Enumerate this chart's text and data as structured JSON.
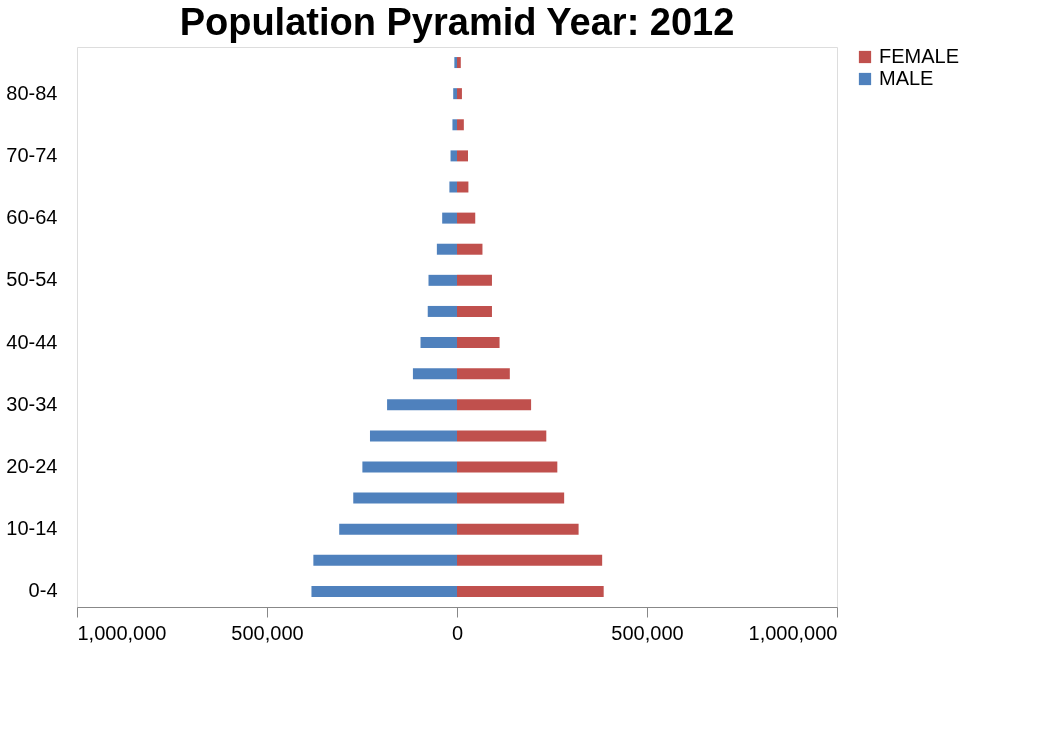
{
  "chart_data": {
    "type": "bar",
    "orientation": "horizontal",
    "title": "Population Pyramid Year: 2012",
    "categories": [
      null,
      "80-84",
      null,
      "70-74",
      null,
      "60-64",
      null,
      "50-54",
      null,
      "40-44",
      null,
      "30-34",
      null,
      "20-24",
      null,
      "10-14",
      null,
      "0-4"
    ],
    "series": [
      {
        "name": "FEMALE",
        "color": "#c0504d",
        "values": [
          10000,
          13000,
          18000,
          29000,
          30000,
          48000,
          67000,
          92000,
          92000,
          112000,
          139000,
          195000,
          235000,
          264000,
          282000,
          320000,
          382000,
          386000
        ]
      },
      {
        "name": "MALE",
        "color": "#4f81bd",
        "values": [
          -7000,
          -10000,
          -12000,
          -17000,
          -20000,
          -39000,
          -53000,
          -75000,
          -77000,
          -96000,
          -116000,
          -184000,
          -229000,
          -249000,
          -273000,
          -310000,
          -378000,
          -383000
        ]
      }
    ],
    "xlim": [
      -1000000,
      1000000
    ],
    "xticks": [
      {
        "value": -1000000,
        "label": "1,000,000"
      },
      {
        "value": -500000,
        "label": "500,000"
      },
      0,
      {
        "value": 500000,
        "label": "500,000"
      },
      {
        "value": 1000000,
        "label": "1,000,000"
      }
    ],
    "stacked": true,
    "legend": "right",
    "grid": false
  }
}
